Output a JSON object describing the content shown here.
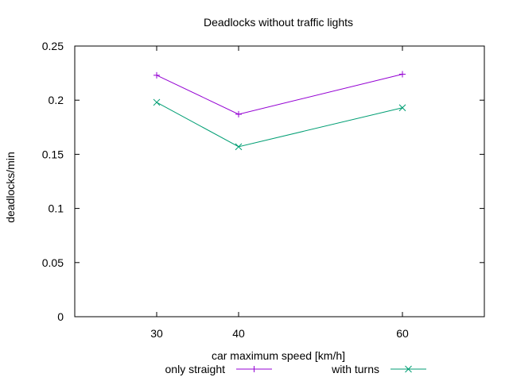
{
  "chart_data": {
    "type": "line",
    "title": "Deadlocks without traffic lights",
    "xlabel": "car maximum speed [km/h]",
    "ylabel": "deadlocks/min",
    "xlim": [
      20,
      70
    ],
    "ylim": [
      0,
      0.25
    ],
    "x_ticks": [
      30,
      40,
      60
    ],
    "x_tick_labels": [
      "30",
      "40",
      "60"
    ],
    "y_ticks": [
      0,
      0.05,
      0.1,
      0.15,
      0.2,
      0.25
    ],
    "y_tick_labels": [
      "0",
      "0.05",
      "0.1",
      "0.15",
      "0.2",
      "0.25"
    ],
    "grid": false,
    "legend_position": "bottom",
    "series": [
      {
        "name": "only straight",
        "marker": "plus",
        "color": "#9400d3",
        "x": [
          30,
          40,
          60
        ],
        "y": [
          0.223,
          0.187,
          0.224
        ]
      },
      {
        "name": "with turns",
        "marker": "cross",
        "color": "#009e73",
        "x": [
          30,
          40,
          60
        ],
        "y": [
          0.198,
          0.157,
          0.193
        ]
      }
    ]
  }
}
